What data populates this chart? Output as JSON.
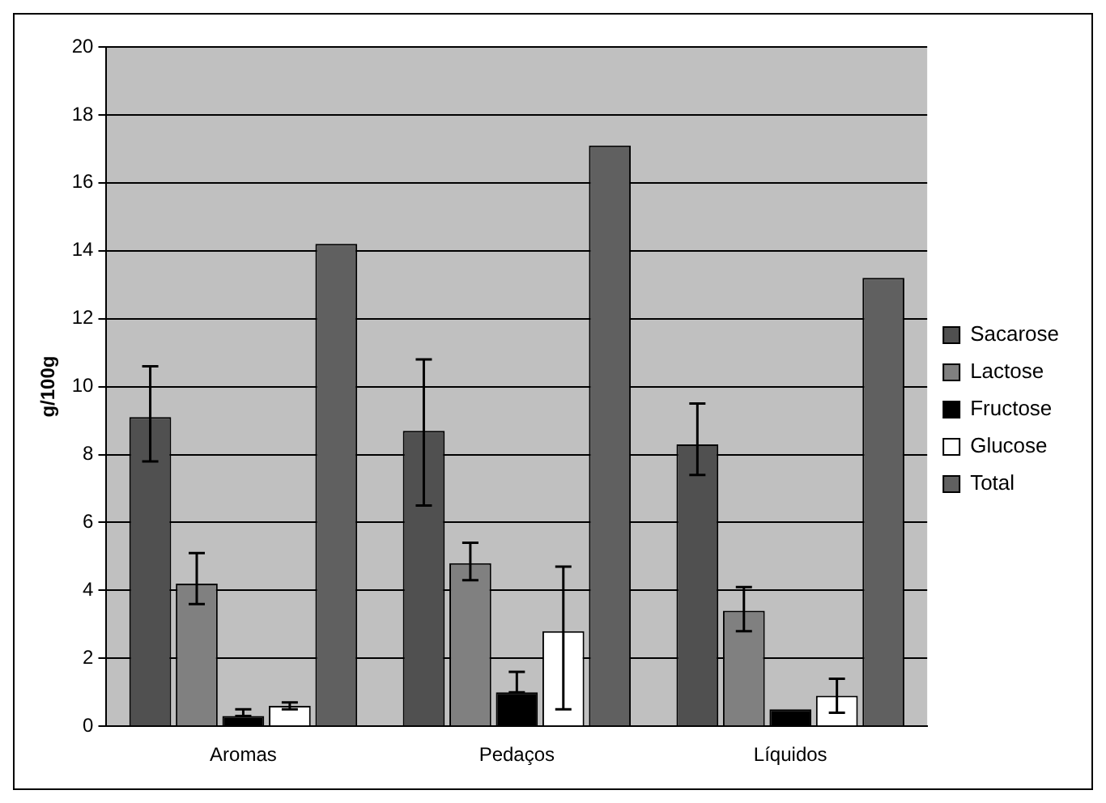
{
  "chart_data": {
    "type": "bar",
    "ylabel": "g/100g",
    "categories": [
      "Aromas",
      "Pedaços",
      "Líquidos"
    ],
    "series": [
      {
        "name": "Sacarose",
        "color": "#505050",
        "values": [
          9.1,
          8.7,
          8.3
        ],
        "errors": [
          [
            7.8,
            10.6
          ],
          [
            6.5,
            10.8
          ],
          [
            7.4,
            9.5
          ]
        ]
      },
      {
        "name": "Lactose",
        "color": "#808080",
        "values": [
          4.2,
          4.8,
          3.4
        ],
        "errors": [
          [
            3.6,
            5.1
          ],
          [
            4.3,
            5.4
          ],
          [
            2.8,
            4.1
          ]
        ]
      },
      {
        "name": "Fructose",
        "color": "#000000",
        "values": [
          0.3,
          1.0,
          0.5
        ],
        "errors": [
          [
            0.3,
            0.5
          ],
          [
            1.0,
            1.6
          ],
          null
        ]
      },
      {
        "name": "Glucose",
        "color": "#ffffff",
        "values": [
          0.6,
          2.8,
          0.9
        ],
        "errors": [
          [
            0.5,
            0.7
          ],
          [
            0.5,
            4.7
          ],
          [
            0.4,
            1.4
          ]
        ]
      },
      {
        "name": "Total",
        "color": "#606060",
        "values": [
          14.2,
          17.1,
          13.2
        ]
      }
    ],
    "ylim": [
      0,
      20
    ],
    "yticks": [
      0,
      2,
      4,
      6,
      8,
      10,
      12,
      14,
      16,
      18,
      20
    ],
    "grid": "y",
    "legend": "right"
  }
}
